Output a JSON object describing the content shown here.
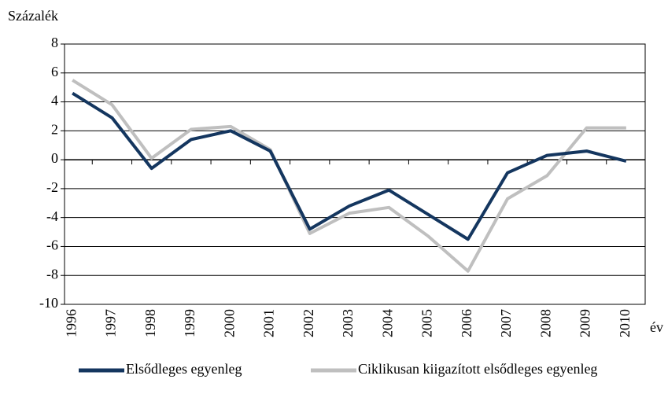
{
  "chart_data": {
    "type": "line",
    "y_axis_label": "Százalék",
    "x_axis_label": "év",
    "categories": [
      "1996",
      "1997",
      "1998",
      "1999",
      "2000",
      "2001",
      "2002",
      "2003",
      "2004",
      "2005",
      "2006",
      "2007",
      "2008",
      "2009",
      "2010"
    ],
    "series": [
      {
        "name": "Elsődleges egyenleg",
        "color": "#14365f",
        "values": [
          4.6,
          2.9,
          -0.6,
          1.4,
          2.0,
          0.6,
          -4.8,
          -3.2,
          -2.1,
          -3.8,
          -5.5,
          -0.9,
          0.3,
          0.6,
          -0.1
        ]
      },
      {
        "name": "Ciklikusan kiigazított elsődleges egyenleg",
        "color": "#bfbfbf",
        "values": [
          5.5,
          3.8,
          0.1,
          2.1,
          2.3,
          0.7,
          -5.1,
          -3.7,
          -3.3,
          -5.3,
          -7.7,
          -2.7,
          -1.1,
          2.2,
          2.2
        ]
      }
    ],
    "ylim": [
      -10,
      8
    ],
    "yticks": [
      -10,
      -8,
      -6,
      -4,
      -2,
      0,
      2,
      4,
      6,
      8
    ],
    "grid": true,
    "legend": "bottom"
  }
}
